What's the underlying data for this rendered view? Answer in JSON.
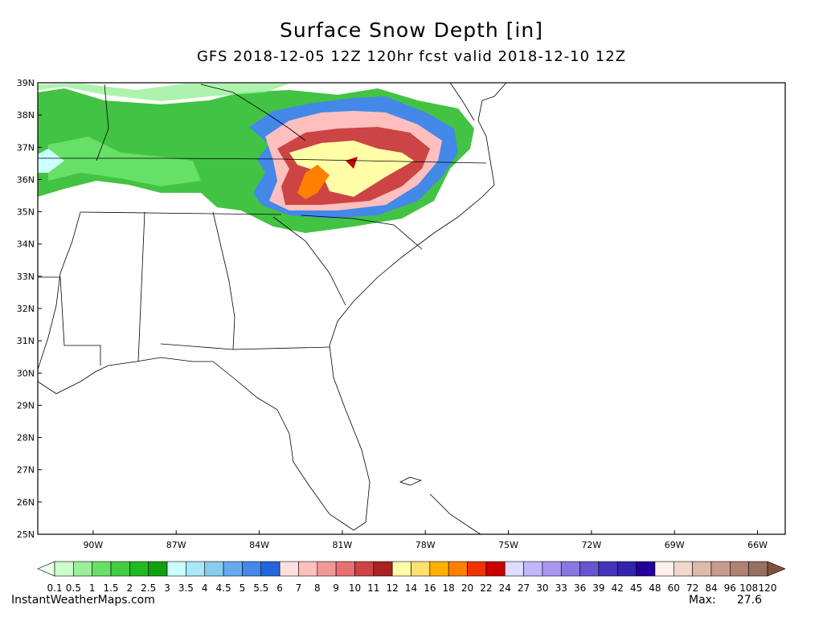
{
  "title": "Surface Snow Depth [in]",
  "subtitle": "GFS 2018-12-05 12Z 120hr fcst valid 2018-12-10 12Z",
  "map": {
    "xlim": [
      -92,
      -65
    ],
    "ylim": [
      25,
      39
    ],
    "yticks": [
      {
        "value": 39,
        "label": "39N"
      },
      {
        "value": 38,
        "label": "38N"
      },
      {
        "value": 37,
        "label": "37N"
      },
      {
        "value": 36,
        "label": "36N"
      },
      {
        "value": 35,
        "label": "35N"
      },
      {
        "value": 34,
        "label": "34N"
      },
      {
        "value": 33,
        "label": "33N"
      },
      {
        "value": 32,
        "label": "32N"
      },
      {
        "value": 31,
        "label": "31N"
      },
      {
        "value": 30,
        "label": "30N"
      },
      {
        "value": 29,
        "label": "29N"
      },
      {
        "value": 28,
        "label": "28N"
      },
      {
        "value": 27,
        "label": "27N"
      },
      {
        "value": 26,
        "label": "26N"
      },
      {
        "value": 25,
        "label": "25N"
      }
    ],
    "xticks": [
      {
        "value": -90,
        "label": "90W"
      },
      {
        "value": -87,
        "label": "87W"
      },
      {
        "value": -84,
        "label": "84W"
      },
      {
        "value": -81,
        "label": "81W"
      },
      {
        "value": -78,
        "label": "78W"
      },
      {
        "value": -75,
        "label": "75W"
      },
      {
        "value": -72,
        "label": "72W"
      },
      {
        "value": -69,
        "label": "69W"
      },
      {
        "value": -66,
        "label": "66W"
      }
    ]
  },
  "colorbar": {
    "labels": [
      0.1,
      0.5,
      1,
      1.5,
      2,
      2.5,
      3,
      3.5,
      4,
      4.5,
      5,
      5.5,
      6,
      7,
      8,
      9,
      10,
      11,
      12,
      14,
      16,
      18,
      20,
      22,
      24,
      27,
      30,
      33,
      36,
      39,
      42,
      45,
      48,
      60,
      72,
      84,
      96,
      108,
      120
    ],
    "colors": [
      "#e8ffe8",
      "#ccffcc",
      "#99f099",
      "#66e066",
      "#44cc44",
      "#22b822",
      "#11a011",
      "#ccffff",
      "#a8e8f8",
      "#88ccf0",
      "#66aaee",
      "#4488e8",
      "#2266dd",
      "#ffe0e0",
      "#ffbfbf",
      "#f09898",
      "#e87070",
      "#cc4444",
      "#aa2222",
      "#ffffa8",
      "#ffe070",
      "#ffb000",
      "#ff8000",
      "#ee3300",
      "#c80000",
      "#ddddff",
      "#c0b8ff",
      "#a898f0",
      "#8878e0",
      "#6655cc",
      "#4433bb",
      "#3322aa",
      "#220099",
      "#fff0e8",
      "#f0d8cc",
      "#ddbbaa",
      "#c89c8c",
      "#b08070",
      "#987060",
      "#805040"
    ]
  },
  "credit": "InstantWeatherMaps.com",
  "max_label": "Max:",
  "max_value": 27.6
}
